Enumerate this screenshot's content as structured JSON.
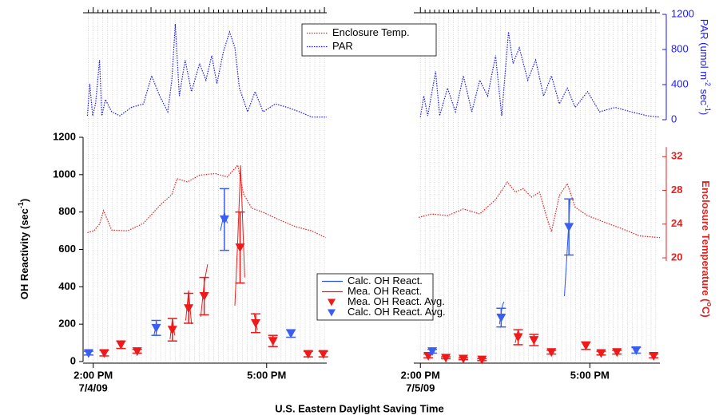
{
  "chart_data": {
    "type": "line",
    "x_label": "U.S. Eastern Daylight Saving Time",
    "y_label": {
      "text": "OH Reactivity (sec",
      "sup": "-1",
      "end": ")"
    },
    "y2_label": {
      "text": "Enclosure Temperature (",
      "sup": "o",
      "end": "C)"
    },
    "par_label": {
      "text": "PAR (umol m",
      "sup1": "-2",
      "mid": " sec",
      "sup2": "-1",
      "end": ")"
    },
    "ylim": [
      0,
      1200
    ],
    "yticks": [
      0,
      200,
      400,
      600,
      800,
      1000,
      1200
    ],
    "y2lim": [
      7.7,
      34.3
    ],
    "y2ticks": [
      20,
      24,
      28,
      32
    ],
    "y2color": "#e8201e",
    "par_ylim": [
      0,
      1200
    ],
    "par_yticks": [
      0,
      400,
      800,
      1200
    ],
    "par_color": "#1a1aff",
    "grid": true,
    "x_grid_step_minutes": 5,
    "series": [
      {
        "name": "Enclosure Temp.",
        "color": "#e8201e",
        "style": "dotted",
        "axis": "y2",
        "legend": "upper"
      },
      {
        "name": "PAR",
        "color": "#1a1aff",
        "style": "dotted",
        "axis": "par",
        "legend": "upper"
      },
      {
        "name": "Calc. OH React.",
        "color": "#2a55e8",
        "style": "solid",
        "axis": "y",
        "legend": "lower"
      },
      {
        "name": "Mea. OH React.",
        "color": "#e8201e",
        "style": "solid",
        "axis": "y",
        "legend": "lower"
      },
      {
        "name": "Mea. OH React. Avg.",
        "color": "#f01818",
        "style": "marker",
        "axis": "y",
        "legend": "lower"
      },
      {
        "name": "Calc. OH React. Avg.",
        "color": "#3a5ef0",
        "style": "marker",
        "axis": "y",
        "legend": "lower"
      }
    ],
    "panels": [
      {
        "date": "7/4/09",
        "xlim": [
          13.88,
          18.04
        ],
        "xticks": [
          {
            "value": 14,
            "label": "2:00 PM"
          },
          {
            "value": 17,
            "label": "5:00 PM"
          }
        ],
        "series": [
          {
            "x": [
              13.9,
              14.01,
              14.11,
              14.18,
              14.32,
              14.59,
              14.87,
              15.15,
              15.36,
              15.45,
              15.63,
              15.84,
              16.11,
              16.32,
              16.5,
              16.6,
              16.74,
              16.94,
              17.22,
              17.5,
              17.78,
              18.02
            ],
            "values": [
              23.0,
              23.2,
              24.0,
              25.6,
              23.3,
              23.2,
              24.1,
              26.2,
              27.5,
              29.4,
              29.0,
              29.8,
              30.0,
              29.6,
              31.0,
              27.6,
              25.9,
              25.4,
              24.5,
              23.7,
              23.2,
              22.4
            ]
          },
          {
            "x": [
              13.9,
              13.94,
              13.99,
              14.04,
              14.11,
              14.15,
              14.21,
              14.32,
              14.46,
              14.66,
              14.87,
              15.01,
              15.15,
              15.29,
              15.36,
              15.42,
              15.49,
              15.59,
              15.7,
              15.84,
              15.95,
              16.05,
              16.14,
              16.25,
              16.36,
              16.45,
              16.53,
              16.67,
              16.8,
              16.94,
              17.15,
              17.36,
              17.57,
              17.78,
              18.04
            ],
            "values": [
              45,
              410,
              45,
              180,
              680,
              45,
              230,
              90,
              45,
              140,
              180,
              500,
              270,
              90,
              450,
              1090,
              270,
              680,
              320,
              640,
              450,
              730,
              410,
              770,
              1000,
              820,
              360,
              90,
              320,
              90,
              180,
              140,
              90,
              30,
              30
            ]
          },
          {
            "x": [
              15.05,
              15.1,
              15.13,
              16.2,
              16.27,
              16.32,
              16.35
            ],
            "values": [
              140,
              210,
              null,
              700,
              800,
              740,
              null
            ]
          },
          {
            "x": [
              15.33,
              15.37,
              15.41,
              15.44,
              15.6,
              15.65,
              15.7,
              15.73,
              15.86,
              15.92,
              15.98,
              16.0,
              16.45,
              16.5,
              16.55,
              16.62,
              16.65,
              16.78,
              16.84
            ],
            "values": [
              120,
              230,
              140,
              null,
              220,
              380,
              200,
              null,
              240,
              420,
              520,
              null,
              300,
              650,
              1050,
              450,
              null,
              260,
              170
            ]
          },
          {
            "x": [
              14.19,
              14.48,
              14.76,
              15.37,
              15.65,
              15.92,
              16.54,
              16.81,
              17.11,
              17.72,
              17.98
            ],
            "values": [
              45,
              90,
              55,
              170,
              285,
              350,
              610,
              205,
              110,
              40,
              40
            ],
            "errors": [
              15,
              20,
              10,
              60,
              80,
              100,
              190,
              50,
              30,
              15,
              15
            ]
          },
          {
            "x": [
              13.92,
              15.09,
              16.27,
              17.42
            ],
            "values": [
              45,
              180,
              760,
              150
            ],
            "errors": [
              10,
              40,
              165,
              20
            ]
          }
        ]
      },
      {
        "date": "7/5/09",
        "xlim": [
          13.94,
          18.24
        ],
        "xticks": [
          {
            "value": 14,
            "label": "2:00 PM"
          },
          {
            "value": 17,
            "label": "5:00 PM"
          }
        ],
        "series": [
          {
            "x": [
              13.97,
              14.2,
              14.48,
              14.76,
              15.05,
              15.33,
              15.54,
              15.68,
              15.82,
              15.97,
              16.11,
              16.25,
              16.32,
              16.46,
              16.6,
              16.74,
              16.96,
              17.31,
              17.59,
              17.88,
              18.24
            ],
            "values": [
              24.8,
              25.2,
              25.0,
              25.8,
              25.2,
              26.9,
              29.0,
              27.8,
              28.2,
              27.2,
              27.8,
              24.5,
              23.1,
              27.4,
              28.8,
              26.0,
              25.0,
              24.1,
              23.4,
              22.6,
              22.4
            ]
          },
          {
            "x": [
              14.0,
              14.06,
              14.13,
              14.27,
              14.34,
              14.48,
              14.62,
              14.76,
              14.91,
              15.05,
              15.19,
              15.33,
              15.44,
              15.56,
              15.64,
              15.75,
              15.9,
              16.04,
              16.18,
              16.32,
              16.46,
              16.6,
              16.74,
              16.96,
              17.17,
              17.45,
              17.73,
              18.02,
              18.24
            ],
            "values": [
              30,
              270,
              45,
              550,
              45,
              360,
              90,
              500,
              90,
              450,
              270,
              730,
              45,
              1000,
              640,
              820,
              450,
              680,
              270,
              500,
              180,
              360,
              140,
              320,
              90,
              140,
              90,
              45,
              30
            ]
          },
          {
            "x": [
              15.4,
              15.45,
              15.48,
              15.5,
              16.55,
              16.6,
              16.65
            ],
            "values": [
              200,
              300,
              320,
              null,
              350,
              600,
              870
            ]
          },
          {
            "x": [
              15.68,
              15.73,
              15.78
            ],
            "values": [
              100,
              170,
              130
            ]
          },
          {
            "x": [
              14.14,
              14.45,
              14.76,
              15.09,
              15.73,
              16.01,
              16.32,
              16.93,
              17.2,
              17.48,
              18.13
            ],
            "values": [
              30,
              20,
              15,
              10,
              130,
              115,
              50,
              85,
              45,
              50,
              30
            ],
            "errors": [
              10,
              5,
              5,
              5,
              40,
              30,
              10,
              20,
              10,
              10,
              10
            ]
          },
          {
            "x": [
              14.21,
              15.43,
              16.63,
              17.82
            ],
            "values": [
              55,
              235,
              720,
              60
            ],
            "errors": [
              10,
              50,
              150,
              15
            ]
          }
        ]
      }
    ]
  }
}
